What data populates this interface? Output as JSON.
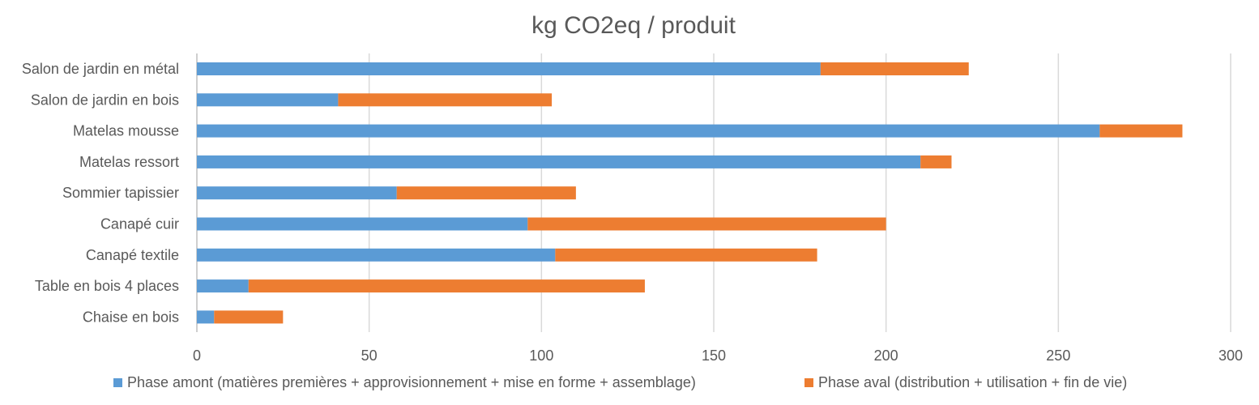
{
  "chart_data": {
    "type": "bar",
    "orientation": "horizontal",
    "stacked": true,
    "title": "kg CO2eq / produit",
    "xlabel": "",
    "ylabel": "",
    "categories": [
      "Salon de jardin en métal",
      "Salon de jardin en bois",
      "Matelas mousse",
      "Matelas ressort",
      "Sommier tapissier",
      "Canapé cuir",
      "Canapé textile",
      "Table en bois 4 places",
      "Chaise en bois"
    ],
    "series": [
      {
        "name": "Phase amont (matières premières + approvisionnement + mise en forme + assemblage)",
        "color": "#5B9BD5",
        "values": [
          181,
          41,
          262,
          210,
          58,
          96,
          104,
          15,
          5
        ]
      },
      {
        "name": "Phase aval (distribution + utilisation + fin de vie)",
        "color": "#ED7D31",
        "values": [
          43,
          62,
          24,
          9,
          52,
          104,
          76,
          115,
          20
        ]
      }
    ],
    "xlim": [
      0,
      300
    ],
    "xticks": [
      0,
      50,
      100,
      150,
      200,
      250,
      300
    ],
    "grid": true,
    "legend": "bottom"
  }
}
